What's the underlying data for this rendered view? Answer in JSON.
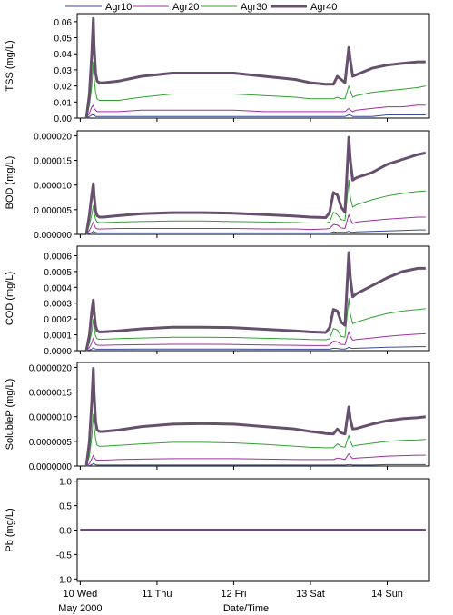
{
  "legend": [
    {
      "name": "Agr10",
      "color": "#3a4a98"
    },
    {
      "name": "Agr20",
      "color": "#a030a0"
    },
    {
      "name": "Agr30",
      "color": "#30a030"
    },
    {
      "name": "Agr40",
      "color": "#66506e"
    }
  ],
  "xaxis": {
    "title": "Date/Time",
    "ticks": [
      {
        "pos": 0,
        "label": "10 Wed"
      },
      {
        "pos": 1,
        "label": "11 Thu"
      },
      {
        "pos": 2,
        "label": "12 Fri"
      },
      {
        "pos": 3,
        "label": "13 Sat"
      },
      {
        "pos": 4,
        "label": "14 Sun"
      }
    ],
    "sublabel": "May 2000",
    "range": [
      -0.04,
      4.55
    ]
  },
  "chart_data": [
    {
      "type": "line",
      "ylabel": "TSS (mg/L)",
      "ylim": [
        0,
        0.065
      ],
      "yticks": [
        "0.00",
        "0.01",
        "0.02",
        "0.03",
        "0.04",
        "0.05",
        "0.06"
      ],
      "ytick_values": [
        0,
        0.01,
        0.02,
        0.03,
        0.04,
        0.05,
        0.06
      ],
      "x": [
        0.08,
        0.12,
        0.15,
        0.17,
        0.18,
        0.2,
        0.22,
        0.25,
        0.3,
        0.5,
        0.8,
        1.2,
        1.6,
        2.0,
        2.4,
        2.8,
        3.0,
        3.2,
        3.3,
        3.35,
        3.4,
        3.45,
        3.5,
        3.52,
        3.55,
        3.6,
        3.8,
        4.0,
        4.2,
        4.4,
        4.5
      ],
      "series": [
        {
          "name": "Agr10",
          "values": [
            0,
            0.001,
            0.002,
            0.002,
            0.002,
            0.001,
            0.001,
            0.001,
            0.001,
            0.001,
            0.001,
            0.001,
            0.001,
            0.001,
            0.001,
            0.001,
            0.001,
            0.001,
            0.001,
            0.001,
            0.001,
            0.001,
            0.002,
            0.002,
            0.001,
            0.001,
            0.001,
            0.002,
            0.002,
            0.002,
            0.002
          ]
        },
        {
          "name": "Agr20",
          "values": [
            0,
            0.003,
            0.007,
            0.008,
            0.006,
            0.005,
            0.004,
            0.004,
            0.004,
            0.004,
            0.005,
            0.005,
            0.005,
            0.005,
            0.004,
            0.004,
            0.004,
            0.004,
            0.004,
            0.004,
            0.004,
            0.004,
            0.006,
            0.005,
            0.004,
            0.005,
            0.006,
            0.007,
            0.007,
            0.008,
            0.008
          ]
        },
        {
          "name": "Agr30",
          "values": [
            0,
            0.008,
            0.02,
            0.035,
            0.025,
            0.016,
            0.012,
            0.011,
            0.011,
            0.011,
            0.013,
            0.015,
            0.015,
            0.015,
            0.014,
            0.013,
            0.012,
            0.012,
            0.012,
            0.013,
            0.012,
            0.012,
            0.02,
            0.017,
            0.013,
            0.014,
            0.016,
            0.017,
            0.018,
            0.019,
            0.02
          ]
        },
        {
          "name": "Agr40",
          "values": [
            0,
            0.015,
            0.04,
            0.062,
            0.045,
            0.028,
            0.023,
            0.022,
            0.022,
            0.023,
            0.026,
            0.028,
            0.028,
            0.028,
            0.026,
            0.024,
            0.022,
            0.021,
            0.021,
            0.026,
            0.024,
            0.022,
            0.044,
            0.036,
            0.026,
            0.027,
            0.031,
            0.033,
            0.034,
            0.035,
            0.035
          ]
        }
      ]
    },
    {
      "type": "line",
      "ylabel": "BOD (mg/L)",
      "ylim": [
        0,
        2.1e-05
      ],
      "yticks": [
        "0.000000",
        "0.000005",
        "0.000010",
        "0.000015",
        "0.000020"
      ],
      "ytick_values": [
        0,
        5e-06,
        1e-05,
        1.5e-05,
        2e-05
      ],
      "x": [
        0.08,
        0.12,
        0.15,
        0.17,
        0.18,
        0.2,
        0.22,
        0.25,
        0.3,
        0.5,
        0.8,
        1.2,
        1.6,
        2.0,
        2.4,
        2.8,
        3.0,
        3.2,
        3.25,
        3.3,
        3.35,
        3.4,
        3.45,
        3.5,
        3.52,
        3.55,
        3.6,
        3.8,
        4.0,
        4.2,
        4.4,
        4.5
      ],
      "series": [
        {
          "name": "Agr10",
          "values": [
            0,
            2e-07,
            4e-07,
            6e-07,
            5e-07,
            4e-07,
            3e-07,
            3e-07,
            3e-07,
            3e-07,
            3e-07,
            3e-07,
            3e-07,
            3e-07,
            3e-07,
            3e-07,
            3e-07,
            3e-07,
            3e-07,
            5e-07,
            4e-07,
            4e-07,
            4e-07,
            6e-07,
            5e-07,
            4e-07,
            5e-07,
            6e-07,
            7e-07,
            8e-07,
            9e-07,
            9e-07
          ]
        },
        {
          "name": "Agr20",
          "values": [
            0,
            8e-07,
            1.8e-06,
            2.5e-06,
            2e-06,
            1.3e-06,
            1.1e-06,
            1.1e-06,
            1.1e-06,
            1.2e-06,
            1.2e-06,
            1.2e-06,
            1.2e-06,
            1.2e-06,
            1.1e-06,
            1.1e-06,
            1e-06,
            1.1e-06,
            1.2e-06,
            2e-06,
            1.9e-06,
            1.3e-06,
            1.2e-06,
            4e-06,
            3.1e-06,
            2.2e-06,
            2.5e-06,
            2.8e-06,
            3.1e-06,
            3.3e-06,
            3.5e-06,
            3.5e-06
          ]
        },
        {
          "name": "Agr30",
          "values": [
            0,
            2e-06,
            4e-06,
            5.8e-06,
            4.5e-06,
            3e-06,
            2.5e-06,
            2.4e-06,
            2.4e-06,
            2.5e-06,
            2.6e-06,
            2.7e-06,
            2.7e-06,
            2.6e-06,
            2.5e-06,
            2.4e-06,
            2.3e-06,
            2.3e-06,
            2.5e-06,
            4.5e-06,
            4e-06,
            3e-06,
            2.8e-06,
            1.1e-05,
            7.5e-06,
            5.5e-06,
            6e-06,
            7e-06,
            7.8e-06,
            8.3e-06,
            8.7e-06,
            8.8e-06
          ]
        },
        {
          "name": "Agr40",
          "values": [
            0,
            4e-06,
            8e-06,
            1.03e-05,
            8e-06,
            4.8e-06,
            3.8e-06,
            3.5e-06,
            3.5e-06,
            3.8e-06,
            4.2e-06,
            4.4e-06,
            4.4e-06,
            4.3e-06,
            4e-06,
            3.7e-06,
            3.5e-06,
            3.4e-06,
            4.5e-06,
            8.5e-06,
            8e-06,
            5.5e-06,
            4.5e-06,
            1.97e-05,
            1.5e-05,
            1.1e-05,
            1.15e-05,
            1.25e-05,
            1.42e-05,
            1.52e-05,
            1.62e-05,
            1.65e-05
          ]
        }
      ]
    },
    {
      "type": "line",
      "ylabel": "COD (mg/L)",
      "ylim": [
        0,
        0.00066
      ],
      "yticks": [
        "0.0000",
        "0.0001",
        "0.0002",
        "0.0003",
        "0.0004",
        "0.0005",
        "0.0006"
      ],
      "ytick_values": [
        0,
        0.0001,
        0.0002,
        0.0003,
        0.0004,
        0.0005,
        0.0006
      ],
      "x": [
        0.08,
        0.12,
        0.15,
        0.17,
        0.18,
        0.2,
        0.22,
        0.25,
        0.3,
        0.5,
        0.8,
        1.2,
        1.6,
        2.0,
        2.4,
        2.8,
        3.0,
        3.2,
        3.25,
        3.3,
        3.35,
        3.4,
        3.45,
        3.5,
        3.52,
        3.55,
        3.6,
        3.8,
        4.0,
        4.2,
        4.4,
        4.5
      ],
      "series": [
        {
          "name": "Agr10",
          "values": [
            0,
            5e-06,
            1e-05,
            1.8e-05,
            1.4e-05,
            1e-05,
            9e-06,
            9e-06,
            9e-06,
            9e-06,
            1e-05,
            1e-05,
            1e-05,
            1e-05,
            9e-06,
            9e-06,
            9e-06,
            9e-06,
            9e-06,
            1.5e-05,
            1.4e-05,
            1e-05,
            1e-05,
            2e-05,
            1.7e-05,
            1.4e-05,
            1.5e-05,
            1.8e-05,
            2.1e-05,
            2.3e-05,
            2.5e-05,
            2.5e-05
          ]
        },
        {
          "name": "Agr20",
          "values": [
            0,
            2e-05,
            5e-05,
            8e-05,
            6e-05,
            4e-05,
            3.5e-05,
            3.4e-05,
            3.4e-05,
            3.6e-05,
            3.8e-05,
            4e-05,
            4e-05,
            3.9e-05,
            3.6e-05,
            3.4e-05,
            3.2e-05,
            3.2e-05,
            3.5e-05,
            6e-05,
            5.5e-05,
            4e-05,
            3.8e-05,
            0.00012,
            9e-05,
            6.6e-05,
            7e-05,
            8e-05,
            9e-05,
            9.8e-05,
            0.000105,
            0.000107
          ]
        },
        {
          "name": "Agr30",
          "values": [
            0,
            5e-05,
            0.00012,
            0.0002,
            0.00015,
            9e-05,
            7.5e-05,
            7.2e-05,
            7.2e-05,
            7.6e-05,
            8e-05,
            8.5e-05,
            8.5e-05,
            8.3e-05,
            7.8e-05,
            7.4e-05,
            7e-05,
            6.9e-05,
            7.6e-05,
            0.00014,
            0.00013,
            9e-05,
            8.5e-05,
            0.00033,
            0.00023,
            0.00017,
            0.00018,
            0.00021,
            0.000235,
            0.00025,
            0.00026,
            0.000265
          ]
        },
        {
          "name": "Agr40",
          "values": [
            0,
            0.0001,
            0.00025,
            0.00032,
            0.00025,
            0.000155,
            0.000125,
            0.000118,
            0.000118,
            0.000125,
            0.000138,
            0.000148,
            0.000148,
            0.000145,
            0.000135,
            0.000125,
            0.000118,
            0.000115,
            0.000145,
            0.00026,
            0.00025,
            0.00018,
            0.00016,
            0.00062,
            0.00046,
            0.00034,
            0.00036,
            0.00041,
            0.00046,
            0.0005,
            0.00052,
            0.00052
          ]
        }
      ]
    },
    {
      "type": "line",
      "ylabel": "SolubleP (mg/L)",
      "ylim": [
        0,
        2.1e-06
      ],
      "yticks": [
        "0.0000000",
        "0.0000005",
        "0.0000010",
        "0.0000015",
        "0.0000020"
      ],
      "ytick_values": [
        0,
        5e-07,
        1e-06,
        1.5e-06,
        2e-06
      ],
      "x": [
        0.08,
        0.12,
        0.15,
        0.17,
        0.18,
        0.2,
        0.22,
        0.25,
        0.3,
        0.5,
        0.8,
        1.2,
        1.6,
        2.0,
        2.4,
        2.8,
        3.0,
        3.2,
        3.3,
        3.35,
        3.4,
        3.45,
        3.5,
        3.52,
        3.55,
        3.6,
        3.8,
        4.0,
        4.2,
        4.4,
        4.5
      ],
      "series": [
        {
          "name": "Agr10",
          "values": [
            0,
            1e-08,
            3e-08,
            5e-08,
            4e-08,
            3e-08,
            2e-08,
            2e-08,
            2e-08,
            2e-08,
            2e-08,
            2e-08,
            2e-08,
            2e-08,
            2e-08,
            2e-08,
            2e-08,
            2e-08,
            2e-08,
            2e-08,
            2e-08,
            2e-08,
            3e-08,
            3e-08,
            2e-08,
            2e-08,
            2e-08,
            3e-08,
            3e-08,
            3e-08,
            3e-08
          ]
        },
        {
          "name": "Agr20",
          "values": [
            0,
            5e-08,
            1.5e-07,
            2.2e-07,
            1.8e-07,
            1.3e-07,
            1.2e-07,
            1.2e-07,
            1.2e-07,
            1.3e-07,
            1.4e-07,
            1.5e-07,
            1.5e-07,
            1.5e-07,
            1.4e-07,
            1.3e-07,
            1.3e-07,
            1.3e-07,
            1.3e-07,
            1.6e-07,
            1.5e-07,
            1.3e-07,
            2.5e-07,
            2e-07,
            1.5e-07,
            1.6e-07,
            1.8e-07,
            2e-07,
            2.1e-07,
            2.2e-07,
            2.2e-07
          ]
        },
        {
          "name": "Agr30",
          "values": [
            0,
            2e-07,
            6e-07,
            1.05e-06,
            8e-07,
            5.5e-07,
            4.2e-07,
            4e-07,
            4e-07,
            4.2e-07,
            4.5e-07,
            4.8e-07,
            4.8e-07,
            4.7e-07,
            4.4e-07,
            4e-07,
            3.8e-07,
            3.7e-07,
            3.7e-07,
            4.5e-07,
            4e-07,
            3.8e-07,
            6.2e-07,
            5e-07,
            4e-07,
            4.2e-07,
            4.6e-07,
            5e-07,
            5.2e-07,
            5.3e-07,
            5.4e-07
          ]
        },
        {
          "name": "Agr40",
          "values": [
            0,
            5e-07,
            1.3e-06,
            1.98e-06,
            1.5e-06,
            9e-07,
            7.3e-07,
            7e-07,
            7e-07,
            7.3e-07,
            8e-07,
            8.5e-07,
            8.6e-07,
            8.5e-07,
            8e-07,
            7.5e-07,
            7e-07,
            6.6e-07,
            6.5e-07,
            7.5e-07,
            6.7e-07,
            6.5e-07,
            1.2e-06,
            9.5e-07,
            7.5e-07,
            7.6e-07,
            8.5e-07,
            9.2e-07,
            9.6e-07,
            9.8e-07,
            1e-06
          ]
        }
      ]
    },
    {
      "type": "line",
      "ylabel": "Pb (mg/L)",
      "ylim": [
        -1.05,
        1.05
      ],
      "yticks": [
        "-1.0",
        "-0.5",
        "0.0",
        "0.5",
        "1.0"
      ],
      "ytick_values": [
        -1,
        -0.5,
        0,
        0.5,
        1
      ],
      "x": [
        0.0,
        4.5
      ],
      "series": [
        {
          "name": "Agr10",
          "values": [
            0,
            0
          ]
        },
        {
          "name": "Agr20",
          "values": [
            0,
            0
          ]
        },
        {
          "name": "Agr30",
          "values": [
            0,
            0
          ]
        },
        {
          "name": "Agr40",
          "values": [
            0,
            0
          ]
        }
      ]
    }
  ]
}
